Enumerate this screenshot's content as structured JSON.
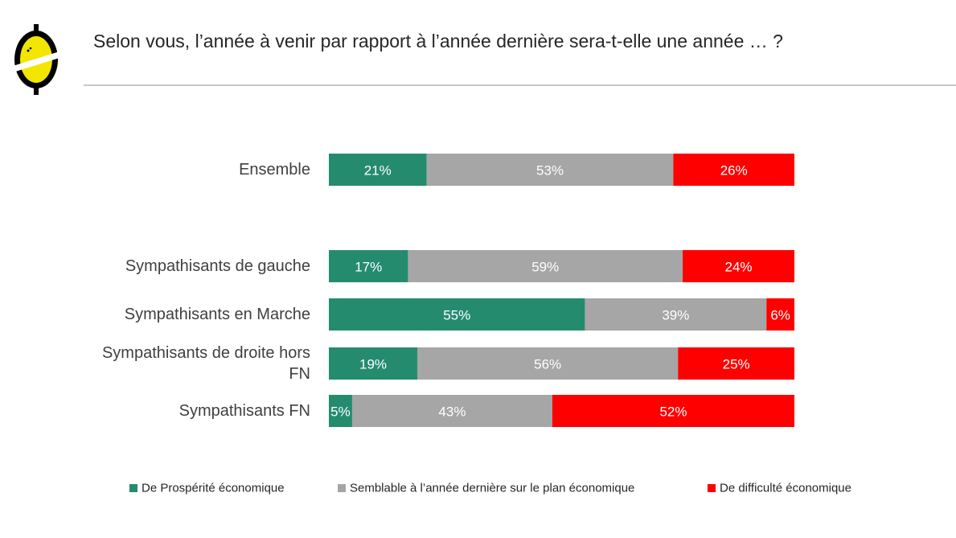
{
  "chart_data": {
    "type": "bar",
    "orientation": "horizontal",
    "stacked": true,
    "title": "Selon vous, l’année à venir par rapport à l’année dernière sera-t-elle une année … ?",
    "categories": [
      [
        "Ensemble"
      ],
      [
        "Sympathisants de gauche"
      ],
      [
        "Sympathisants en Marche"
      ],
      [
        "Sympathisants de droite hors",
        "FN"
      ],
      [
        "Sympathisants FN"
      ]
    ],
    "series": [
      {
        "name": "De Prospérité économique",
        "color": "#258B6F",
        "values": [
          21,
          17,
          55,
          19,
          5
        ]
      },
      {
        "name": "Semblable à l’année dernière sur le plan économique",
        "color": "#A6A6A6",
        "values": [
          53,
          59,
          39,
          56,
          43
        ]
      },
      {
        "name": "De difficulté économique",
        "color": "#FF0000",
        "values": [
          26,
          24,
          6,
          25,
          52
        ]
      }
    ],
    "value_suffix": "%",
    "xlim": [
      0,
      100
    ],
    "grid": false,
    "legend_position": "bottom"
  }
}
